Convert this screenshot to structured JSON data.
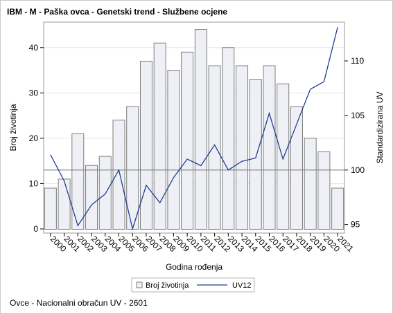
{
  "title": "IBM - M - Paška ovca - Genetski trend - Službene ocjene",
  "footnote": "Ovce - Nacionalni obračun UV - 2601",
  "chart_data": {
    "type": "bar",
    "categories": [
      "2000",
      "2001",
      "2002",
      "2003",
      "2004",
      "2005",
      "2006",
      "2007",
      "2008",
      "2009",
      "2010",
      "2011",
      "2012",
      "2013",
      "2014",
      "2015",
      "2016",
      "2017",
      "2018",
      "2019",
      "2020",
      "2021"
    ],
    "series": [
      {
        "name": "Broj životinja",
        "type": "bar",
        "axis": "left",
        "color": "#eef0f5",
        "values": [
          9,
          11,
          21,
          14,
          16,
          24,
          27,
          37,
          41,
          35,
          39,
          44,
          36,
          40,
          36,
          33,
          36,
          32,
          27,
          20,
          17,
          9
        ]
      },
      {
        "name": "UV12",
        "type": "line",
        "axis": "right",
        "color": "#1f3f8f",
        "values": [
          101.4,
          99.0,
          94.9,
          96.8,
          97.8,
          100.0,
          94.6,
          98.6,
          97.0,
          99.3,
          101.0,
          100.4,
          102.3,
          100.0,
          100.8,
          101.1,
          105.2,
          101.0,
          104.2,
          107.4,
          108.1,
          113.1
        ]
      }
    ],
    "xlabel": "Godina rođenja",
    "ylabel": "Broj životinja",
    "y2label": "Standardizirana UV",
    "ylim": [
      0,
      45
    ],
    "y2lim": [
      94.6,
      113.3
    ],
    "yticks": [
      "0",
      "10",
      "20",
      "30",
      "40"
    ],
    "y2ticks": [
      "95",
      "100",
      "105",
      "110"
    ],
    "reference_line_y2": 100,
    "grid": "horizontal",
    "legend_position": "bottom"
  }
}
